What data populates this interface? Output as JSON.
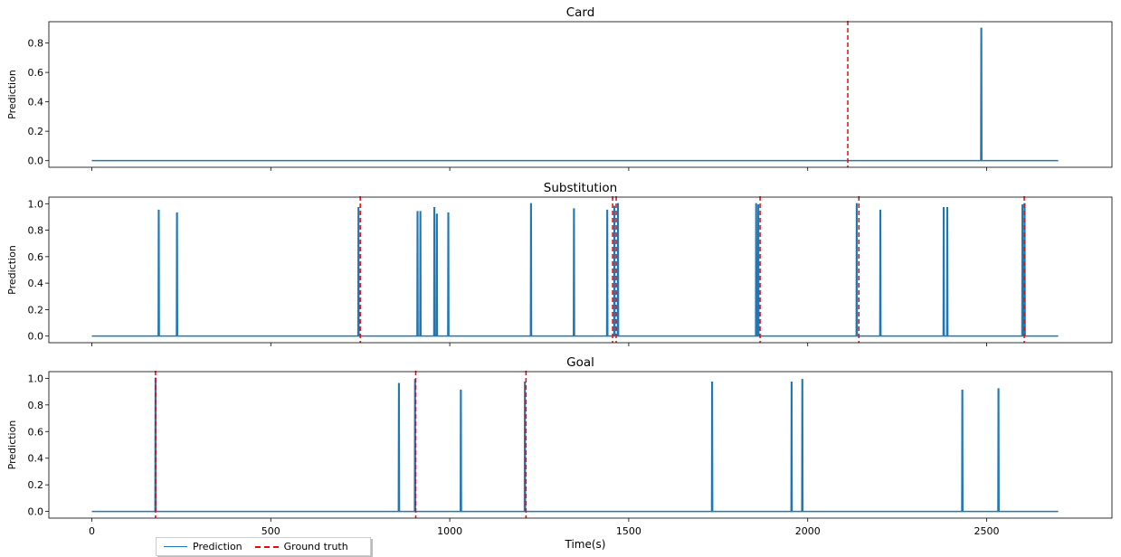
{
  "chart_data": {
    "type": "line",
    "xlabel": "Time(s)",
    "ylabel": "Prediction",
    "xlim": [
      -120,
      2850
    ],
    "x_ticks": [
      0,
      500,
      1000,
      1500,
      2000,
      2500
    ],
    "duration": 2700,
    "colors": {
      "prediction": "#1f77b4",
      "ground_truth": "#ff0000"
    },
    "legend": {
      "placement": "bottom-left",
      "entries": [
        {
          "label": "Prediction",
          "style": "solid",
          "color": "#1f77b4"
        },
        {
          "label": "Ground truth",
          "style": "dashed",
          "color": "#ff0000"
        }
      ]
    },
    "panels": [
      {
        "title": "Card",
        "ylim": [
          -0.045,
          0.945
        ],
        "y_ticks": [
          "0.0",
          "0.2",
          "0.4",
          "0.6",
          "0.8"
        ],
        "y_tick_values": [
          0,
          0.2,
          0.4,
          0.6,
          0.8
        ],
        "spikes": [
          {
            "x": 2485,
            "y": 0.9
          }
        ],
        "ground_truth": [
          2112
        ]
      },
      {
        "title": "Substitution",
        "ylim": [
          -0.05,
          1.05
        ],
        "y_ticks": [
          "0.0",
          "0.2",
          "0.4",
          "0.6",
          "0.8",
          "1.0"
        ],
        "y_tick_values": [
          0,
          0.2,
          0.4,
          0.6,
          0.8,
          1.0
        ],
        "spikes": [
          {
            "x": 187,
            "y": 0.95
          },
          {
            "x": 238,
            "y": 0.93
          },
          {
            "x": 745,
            "y": 0.97
          },
          {
            "x": 910,
            "y": 0.94
          },
          {
            "x": 918,
            "y": 0.94
          },
          {
            "x": 957,
            "y": 0.97
          },
          {
            "x": 964,
            "y": 0.92
          },
          {
            "x": 996,
            "y": 0.93
          },
          {
            "x": 1227,
            "y": 1.0
          },
          {
            "x": 1347,
            "y": 0.96
          },
          {
            "x": 1440,
            "y": 0.95
          },
          {
            "x": 1460,
            "y": 0.98
          },
          {
            "x": 1470,
            "y": 1.0
          },
          {
            "x": 1856,
            "y": 1.0
          },
          {
            "x": 1862,
            "y": 0.99
          },
          {
            "x": 2137,
            "y": 1.0
          },
          {
            "x": 2203,
            "y": 0.95
          },
          {
            "x": 2380,
            "y": 0.97
          },
          {
            "x": 2390,
            "y": 0.97
          },
          {
            "x": 2600,
            "y": 0.99
          },
          {
            "x": 2606,
            "y": 1.0
          }
        ],
        "ground_truth": [
          750,
          1455,
          1465,
          1867,
          2143,
          2605
        ]
      },
      {
        "title": "Goal",
        "ylim": [
          -0.05,
          1.05
        ],
        "y_ticks": [
          "0.0",
          "0.2",
          "0.4",
          "0.6",
          "0.8",
          "1.0"
        ],
        "y_tick_values": [
          0,
          0.2,
          0.4,
          0.6,
          0.8,
          1.0
        ],
        "spikes": [
          {
            "x": 178,
            "y": 1.0
          },
          {
            "x": 858,
            "y": 0.96
          },
          {
            "x": 903,
            "y": 0.99
          },
          {
            "x": 1031,
            "y": 0.91
          },
          {
            "x": 1210,
            "y": 0.97
          },
          {
            "x": 1733,
            "y": 0.97
          },
          {
            "x": 1955,
            "y": 0.97
          },
          {
            "x": 1985,
            "y": 0.99
          },
          {
            "x": 2432,
            "y": 0.91
          },
          {
            "x": 2533,
            "y": 0.92
          }
        ],
        "ground_truth": [
          178,
          905,
          1213
        ]
      }
    ]
  }
}
